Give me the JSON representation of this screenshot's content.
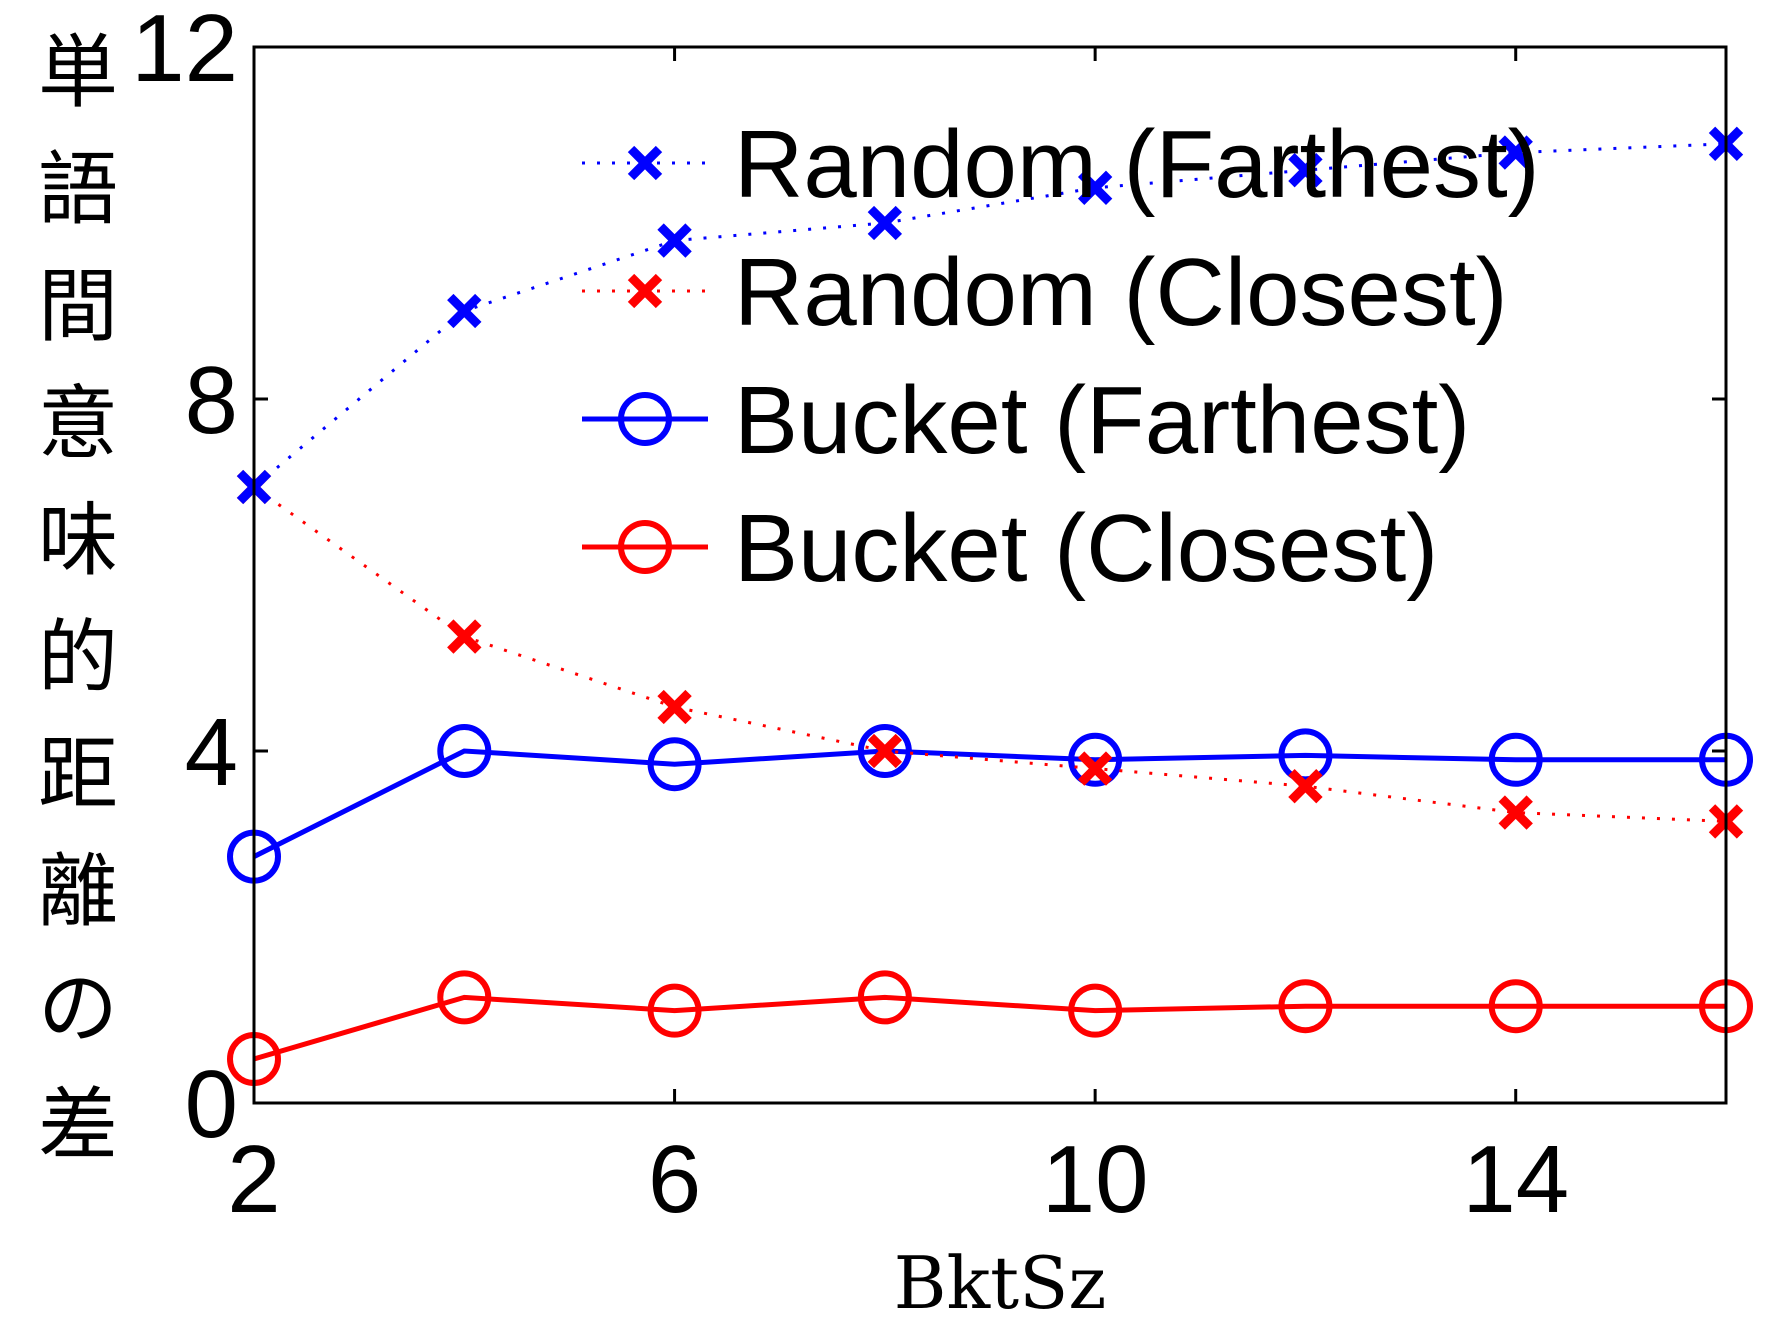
{
  "chart_data": {
    "type": "line",
    "xlabel": "BktSz",
    "ylabel": "単語間意味的距離の差",
    "xlim": [
      2,
      16
    ],
    "ylim": [
      0,
      12
    ],
    "xticks": [
      2,
      6,
      10,
      14
    ],
    "yticks": [
      0,
      4,
      8,
      12
    ],
    "grid": false,
    "legend_position": "top-right",
    "series": [
      {
        "name": "Random (Farthest)",
        "x": [
          2,
          4,
          6,
          8,
          10,
          12,
          14,
          16
        ],
        "values": [
          7.0,
          9.0,
          9.8,
          10.0,
          10.4,
          10.6,
          10.8,
          10.9
        ],
        "color": "#0000ff",
        "style": "dotted",
        "marker": "x"
      },
      {
        "name": "Random (Closest)",
        "x": [
          2,
          4,
          6,
          8,
          10,
          12,
          14,
          16
        ],
        "values": [
          7.0,
          5.3,
          4.5,
          4.0,
          3.8,
          3.6,
          3.3,
          3.2
        ],
        "color": "#ff0000",
        "style": "dotted",
        "marker": "x"
      },
      {
        "name": "Bucket (Farthest)",
        "x": [
          2,
          4,
          6,
          8,
          10,
          12,
          14,
          16
        ],
        "values": [
          2.8,
          4.0,
          3.85,
          4.0,
          3.9,
          3.95,
          3.9,
          3.9
        ],
        "color": "#0000ff",
        "style": "solid",
        "marker": "o"
      },
      {
        "name": "Bucket (Closest)",
        "x": [
          2,
          4,
          6,
          8,
          10,
          12,
          14,
          16
        ],
        "values": [
          0.5,
          1.2,
          1.05,
          1.2,
          1.05,
          1.1,
          1.1,
          1.1
        ],
        "color": "#ff0000",
        "style": "solid",
        "marker": "o"
      }
    ]
  }
}
